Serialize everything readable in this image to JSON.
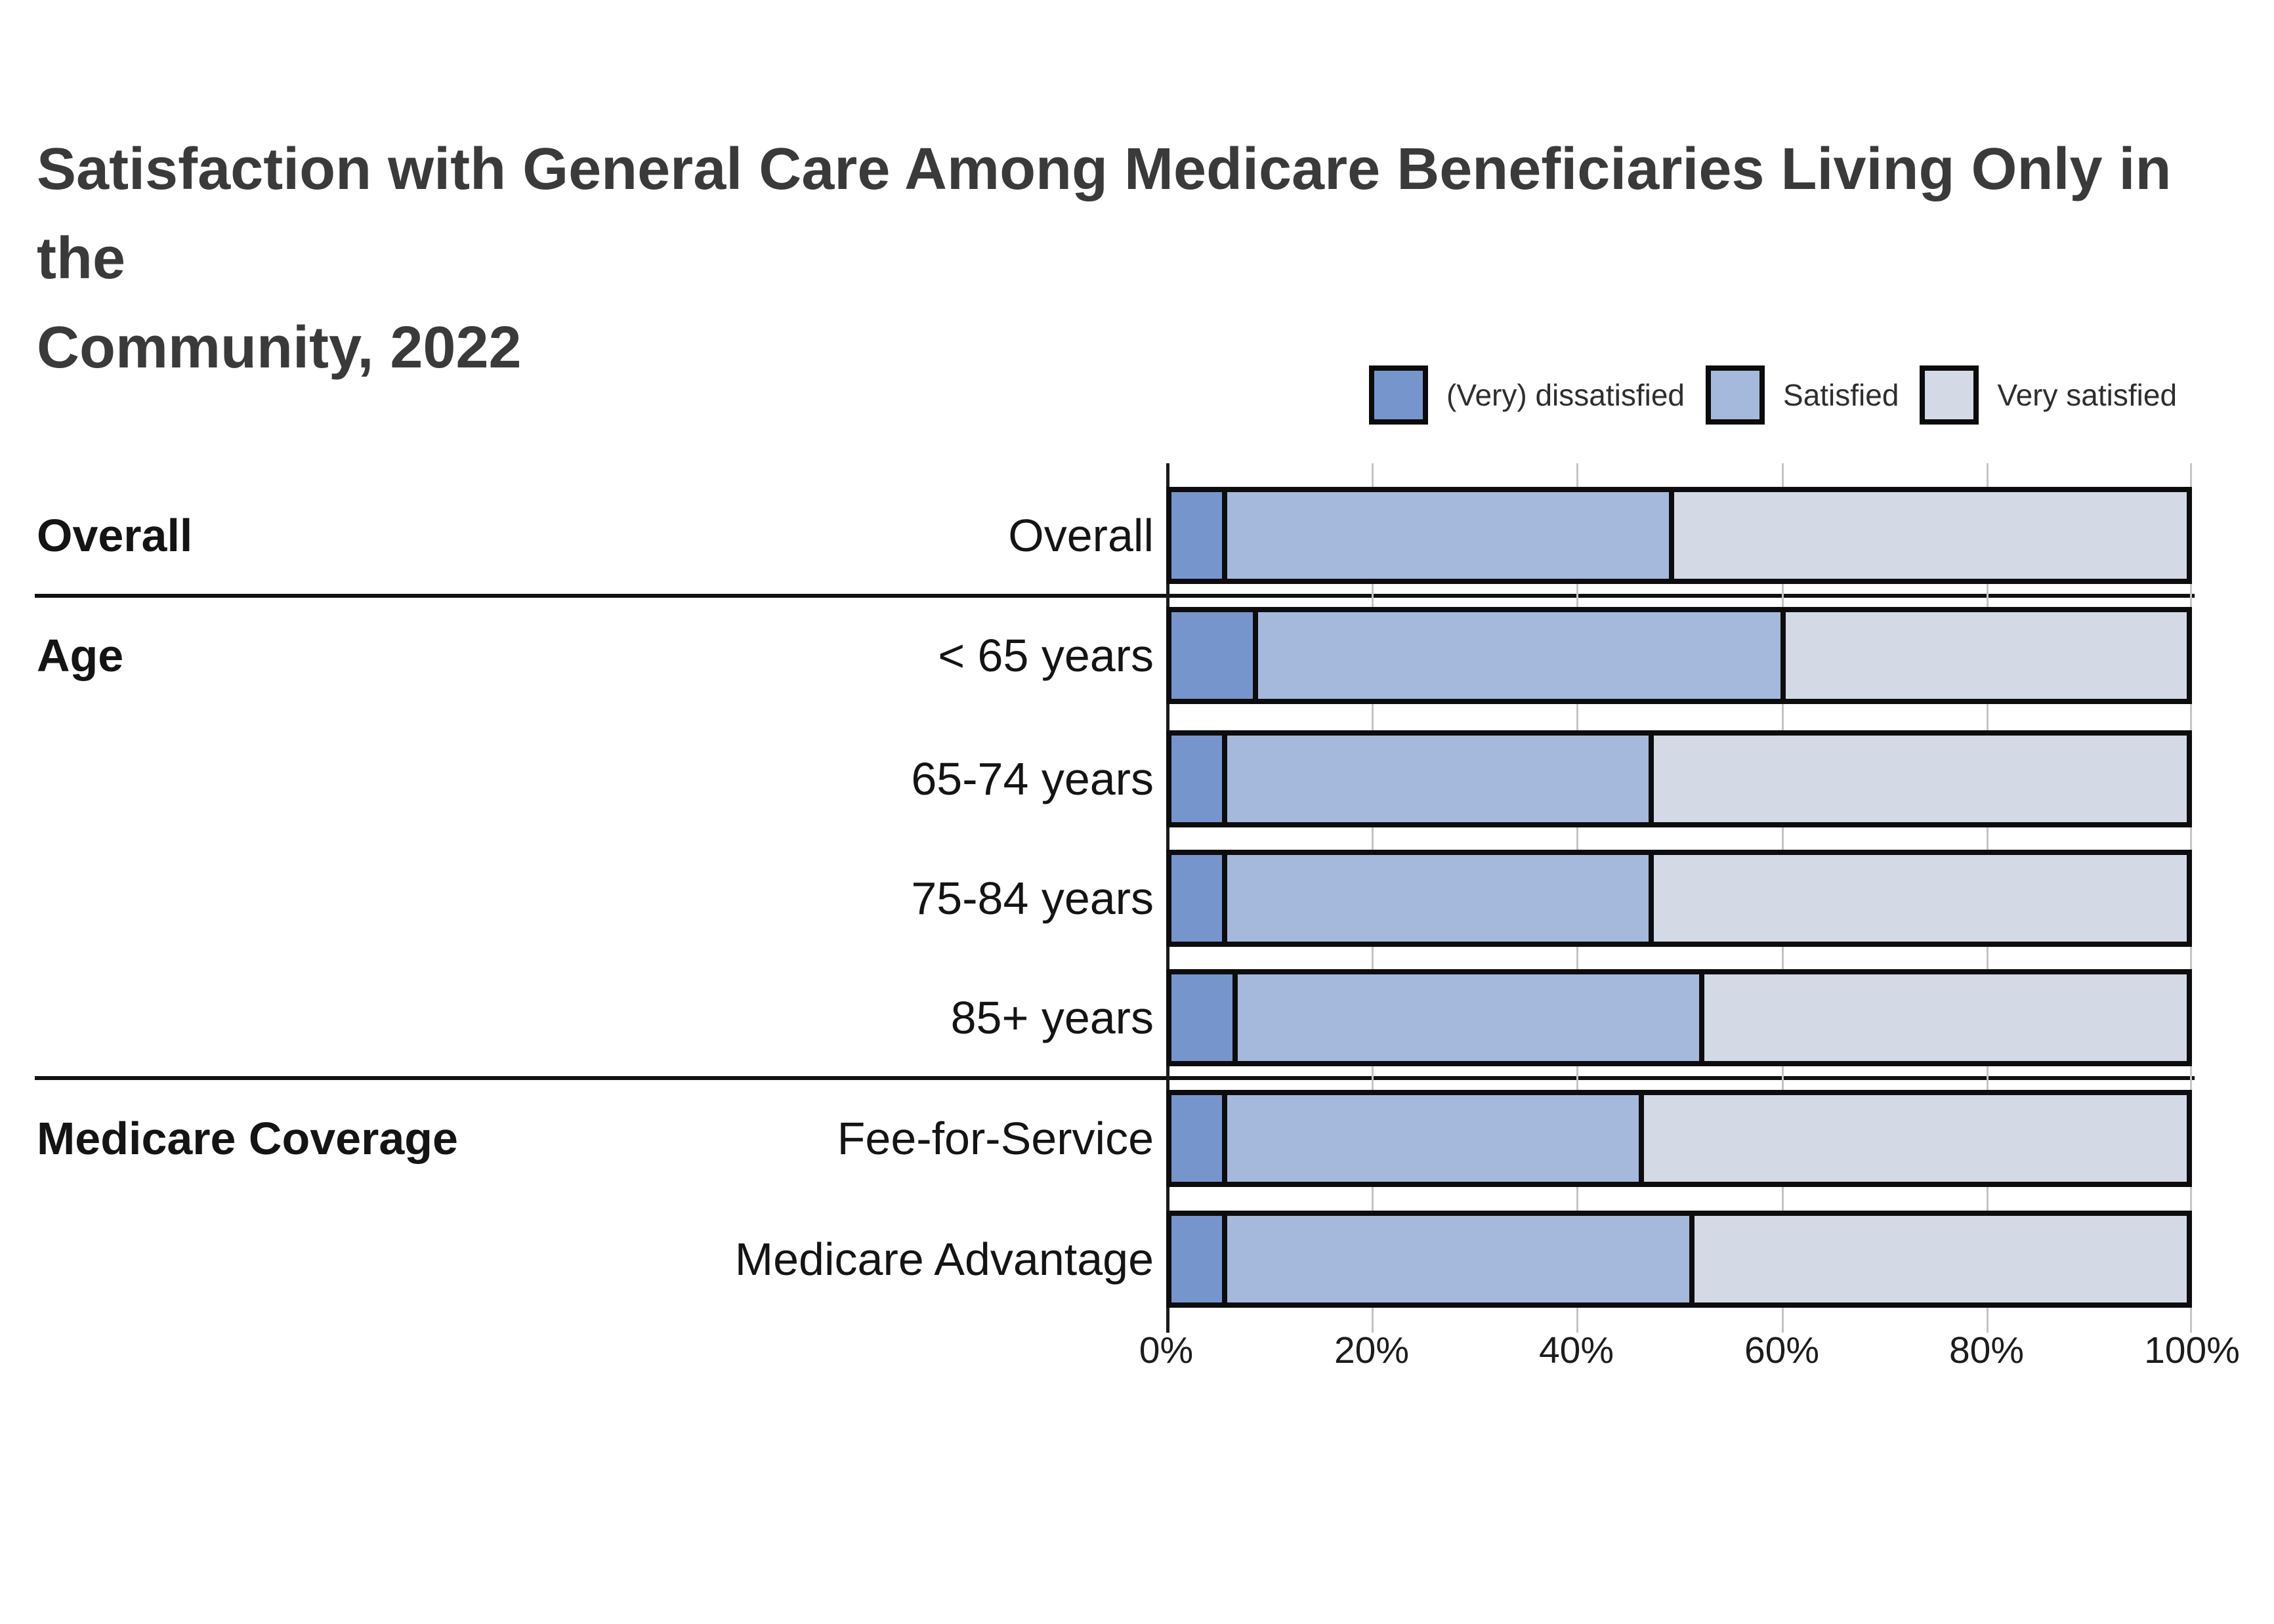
{
  "title": {
    "lines": [
      "Satisfaction with General Care Among Medicare Beneficiaries Living Only in the",
      "Community, 2022"
    ],
    "color": "#3a3a3a"
  },
  "legend": {
    "items": [
      {
        "label": "(Very) dissatisfied",
        "color": "#7795cd"
      },
      {
        "label": "Satisfied",
        "color": "#a5b9dc"
      },
      {
        "label": "Very satisfied",
        "color": "#d3dae5"
      }
    ]
  },
  "chart_data": {
    "type": "bar",
    "orientation": "horizontal",
    "stacked": true,
    "title": "Satisfaction with General Care Among Medicare Beneficiaries Living Only in the Community, 2022",
    "series_names": [
      "(Very) dissatisfied",
      "Satisfied",
      "Very satisfied"
    ],
    "series_colors": [
      "#7795cd",
      "#a5b9dc",
      "#d3dae5"
    ],
    "sections": [
      {
        "label": "Overall",
        "rows": [
          {
            "category": "Overall",
            "values": [
              5,
              44,
              51
            ]
          }
        ]
      },
      {
        "label": "Age",
        "rows": [
          {
            "category": "< 65 years",
            "values": [
              8,
              52,
              40
            ]
          },
          {
            "category": "65-74 years",
            "values": [
              5,
              42,
              53
            ]
          },
          {
            "category": "75-84 years",
            "values": [
              5,
              42,
              53
            ]
          },
          {
            "category": "85+ years",
            "values": [
              6,
              46,
              48
            ]
          }
        ]
      },
      {
        "label": "Medicare Coverage",
        "rows": [
          {
            "category": "Fee-for-Service",
            "values": [
              5,
              41,
              54
            ]
          },
          {
            "category": "Medicare Advantage",
            "values": [
              5,
              46,
              49
            ]
          }
        ]
      }
    ],
    "x_axis": {
      "tick_labels": [
        "0%",
        "20%",
        "40%",
        "60%",
        "80%",
        "100%"
      ],
      "min": 0,
      "max": 100,
      "unit": "%",
      "grid": true
    },
    "legend_position": "top-right",
    "bar_border_color": "#0d0d0d"
  }
}
